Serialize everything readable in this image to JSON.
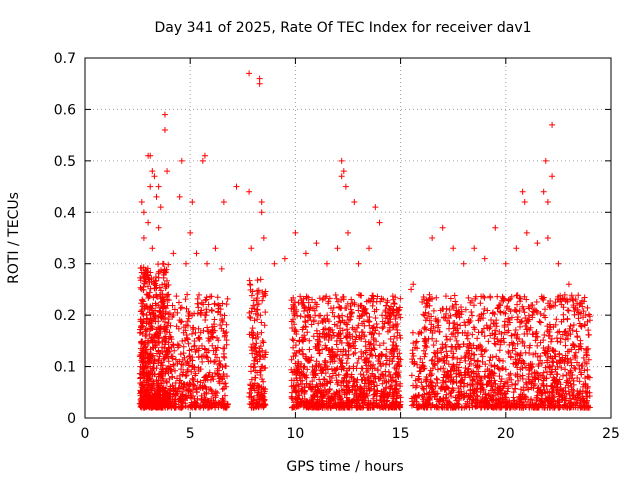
{
  "chart_data": {
    "type": "scatter",
    "title": "Day 341 of 2025, Rate Of TEC Index for receiver dav1",
    "xlabel": "GPS time / hours",
    "ylabel": "ROTI / TECUs",
    "xlim": [
      0,
      25
    ],
    "ylim": [
      0,
      0.7
    ],
    "xticks": [
      "0",
      "5",
      "10",
      "15",
      "20",
      "25"
    ],
    "yticks": [
      "0",
      "0.1",
      "0.2",
      "0.3",
      "0.4",
      "0.5",
      "0.6",
      "0.7"
    ],
    "grid": true,
    "marker": "plus",
    "color": "#ff0000",
    "series": [
      {
        "points": [
          [
            2.7,
            0.42
          ],
          [
            2.8,
            0.4
          ],
          [
            3.0,
            0.51
          ],
          [
            3.1,
            0.51
          ],
          [
            3.2,
            0.48
          ],
          [
            3.3,
            0.47
          ],
          [
            3.1,
            0.45
          ],
          [
            3.4,
            0.43
          ],
          [
            3.5,
            0.45
          ],
          [
            3.6,
            0.41
          ],
          [
            3.8,
            0.59
          ],
          [
            3.8,
            0.56
          ],
          [
            3.9,
            0.48
          ],
          [
            4.6,
            0.5
          ],
          [
            4.5,
            0.43
          ],
          [
            5.1,
            0.42
          ],
          [
            5.7,
            0.51
          ],
          [
            5.6,
            0.5
          ],
          [
            6.6,
            0.42
          ],
          [
            7.2,
            0.45
          ],
          [
            7.8,
            0.44
          ],
          [
            7.8,
            0.67
          ],
          [
            8.3,
            0.66
          ],
          [
            8.3,
            0.65
          ],
          [
            8.4,
            0.42
          ],
          [
            8.4,
            0.4
          ],
          [
            12.2,
            0.5
          ],
          [
            12.2,
            0.47
          ],
          [
            12.3,
            0.48
          ],
          [
            12.4,
            0.45
          ],
          [
            12.8,
            0.42
          ],
          [
            13.8,
            0.41
          ],
          [
            20.8,
            0.44
          ],
          [
            20.9,
            0.42
          ],
          [
            21.9,
            0.5
          ],
          [
            21.8,
            0.44
          ],
          [
            22.0,
            0.42
          ],
          [
            22.2,
            0.57
          ],
          [
            22.2,
            0.47
          ],
          [
            2.8,
            0.35
          ],
          [
            3.0,
            0.38
          ],
          [
            3.2,
            0.33
          ],
          [
            3.5,
            0.37
          ],
          [
            3.7,
            0.3
          ],
          [
            4.2,
            0.32
          ],
          [
            4.8,
            0.3
          ],
          [
            5.0,
            0.36
          ],
          [
            5.3,
            0.32
          ],
          [
            5.8,
            0.3
          ],
          [
            6.2,
            0.33
          ],
          [
            6.5,
            0.29
          ],
          [
            7.9,
            0.33
          ],
          [
            8.5,
            0.35
          ],
          [
            9.0,
            0.3
          ],
          [
            9.5,
            0.31
          ],
          [
            10.0,
            0.36
          ],
          [
            10.5,
            0.32
          ],
          [
            11.0,
            0.34
          ],
          [
            11.5,
            0.3
          ],
          [
            12.0,
            0.33
          ],
          [
            12.5,
            0.36
          ],
          [
            13.0,
            0.3
          ],
          [
            13.5,
            0.33
          ],
          [
            14.0,
            0.38
          ],
          [
            16.5,
            0.35
          ],
          [
            17.0,
            0.37
          ],
          [
            17.5,
            0.33
          ],
          [
            18.0,
            0.3
          ],
          [
            18.5,
            0.33
          ],
          [
            19.0,
            0.31
          ],
          [
            19.5,
            0.37
          ],
          [
            20.0,
            0.3
          ],
          [
            20.5,
            0.33
          ],
          [
            21.0,
            0.36
          ],
          [
            21.5,
            0.34
          ],
          [
            22.0,
            0.35
          ],
          [
            22.5,
            0.3
          ],
          [
            23.0,
            0.26
          ],
          [
            23.5,
            0.22
          ],
          [
            15.5,
            0.25
          ],
          [
            15.6,
            0.26
          ],
          [
            16.2,
            0.19
          ],
          [
            23.8,
            0.2
          ],
          [
            24.0,
            0.19
          ]
        ]
      }
    ]
  }
}
